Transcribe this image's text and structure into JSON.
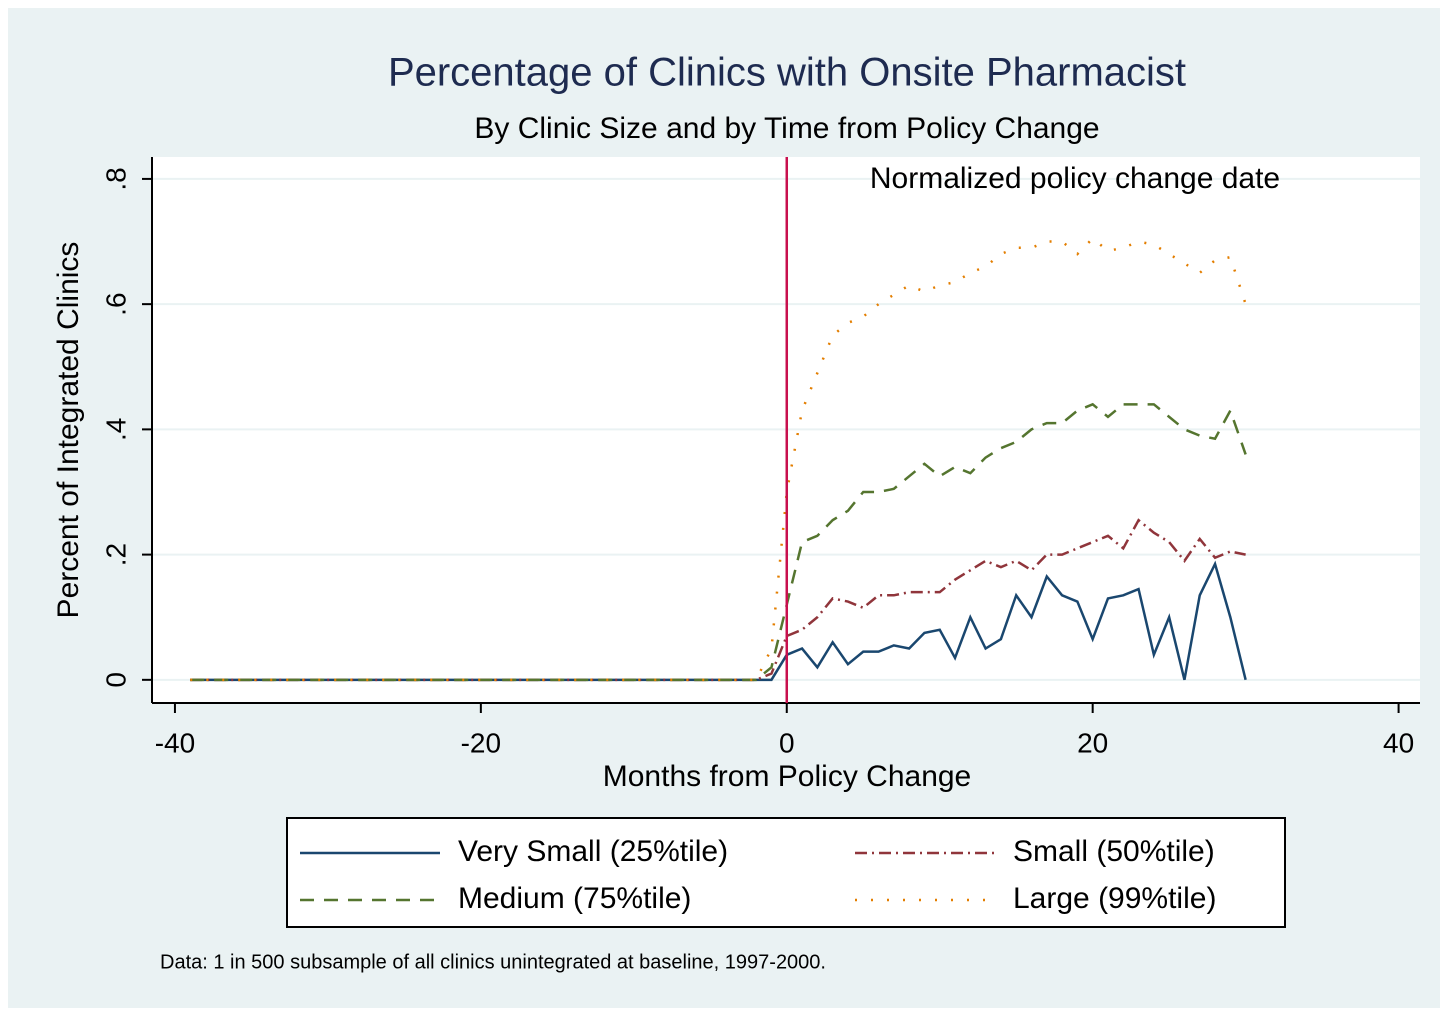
{
  "chart_data": {
    "type": "line",
    "title": "Percentage of Clinics with Onsite Pharmacist",
    "subtitle": "By Clinic Size and by Time from Policy Change",
    "xlabel": "Months from Policy Change",
    "ylabel": "Percent of Integrated Clinics",
    "note": "Data: 1 in 500 subsample of all clinics unintegrated at baseline, 1997-2000.",
    "reference_line": {
      "x": 0,
      "label": "Normalized policy change date",
      "color": "#c8104e"
    },
    "x": [
      -39,
      -38,
      -37,
      -36,
      -35,
      -34,
      -33,
      -32,
      -31,
      -30,
      -29,
      -28,
      -27,
      -26,
      -25,
      -24,
      -23,
      -22,
      -21,
      -20,
      -19,
      -18,
      -17,
      -16,
      -15,
      -14,
      -13,
      -12,
      -11,
      -10,
      -9,
      -8,
      -7,
      -6,
      -5,
      -4,
      -3,
      -2,
      -1,
      0,
      1,
      2,
      3,
      4,
      5,
      6,
      7,
      8,
      9,
      10,
      11,
      12,
      13,
      14,
      15,
      16,
      17,
      18,
      19,
      20,
      21,
      22,
      23,
      24,
      25,
      26,
      27,
      28,
      29,
      30
    ],
    "series": [
      {
        "name": "Very Small (25%tile)",
        "color": "#1a476f",
        "style": "solid",
        "values": [
          0,
          0,
          0,
          0,
          0,
          0,
          0,
          0,
          0,
          0,
          0,
          0,
          0,
          0,
          0,
          0,
          0,
          0,
          0,
          0,
          0,
          0,
          0,
          0,
          0,
          0,
          0,
          0,
          0,
          0,
          0,
          0,
          0,
          0,
          0,
          0,
          0,
          0,
          0,
          0.04,
          0.05,
          0.02,
          0.06,
          0.025,
          0.045,
          0.045,
          0.055,
          0.05,
          0.075,
          0.08,
          0.035,
          0.1,
          0.05,
          0.065,
          0.135,
          0.1,
          0.165,
          0.135,
          0.125,
          0.065,
          0.13,
          0.135,
          0.145,
          0.04,
          0.1,
          0,
          0.135,
          0.185,
          0.1,
          0
        ]
      },
      {
        "name": "Small (50%tile)",
        "color": "#90353b",
        "style": "dashdot",
        "values": [
          0,
          0,
          0,
          0,
          0,
          0,
          0,
          0,
          0,
          0,
          0,
          0,
          0,
          0,
          0,
          0,
          0,
          0,
          0,
          0,
          0,
          0,
          0,
          0,
          0,
          0,
          0,
          0,
          0,
          0,
          0,
          0,
          0,
          0,
          0,
          0,
          0,
          0,
          0.01,
          0.07,
          0.08,
          0.1,
          0.13,
          0.125,
          0.115,
          0.135,
          0.135,
          0.14,
          0.14,
          0.14,
          0.16,
          0.175,
          0.19,
          0.18,
          0.19,
          0.175,
          0.2,
          0.2,
          0.21,
          0.22,
          0.23,
          0.21,
          0.255,
          0.235,
          0.22,
          0.19,
          0.225,
          0.195,
          0.205,
          0.2
        ]
      },
      {
        "name": "Medium (75%tile)",
        "color": "#55752f",
        "style": "dash",
        "values": [
          0,
          0,
          0,
          0,
          0,
          0,
          0,
          0,
          0,
          0,
          0,
          0,
          0,
          0,
          0,
          0,
          0,
          0,
          0,
          0,
          0,
          0,
          0,
          0,
          0,
          0,
          0,
          0,
          0,
          0,
          0,
          0,
          0,
          0,
          0,
          0,
          0,
          0,
          0.02,
          0.12,
          0.22,
          0.23,
          0.255,
          0.27,
          0.3,
          0.3,
          0.305,
          0.325,
          0.345,
          0.325,
          0.34,
          0.33,
          0.355,
          0.37,
          0.38,
          0.4,
          0.41,
          0.41,
          0.43,
          0.44,
          0.42,
          0.44,
          0.44,
          0.44,
          0.42,
          0.4,
          0.39,
          0.385,
          0.43,
          0.36
        ]
      },
      {
        "name": "Large (99%tile)",
        "color": "#e37e00",
        "style": "dot",
        "values": [
          0,
          0,
          0,
          0,
          0,
          0,
          0,
          0,
          0,
          0,
          0,
          0,
          0,
          0,
          0,
          0,
          0,
          0,
          0,
          0,
          0,
          0,
          0,
          0,
          0,
          0,
          0,
          0,
          0,
          0,
          0,
          0,
          0,
          0,
          0,
          0,
          0,
          0,
          0.05,
          0.3,
          0.43,
          0.49,
          0.55,
          0.57,
          0.58,
          0.6,
          0.615,
          0.63,
          0.62,
          0.63,
          0.635,
          0.65,
          0.66,
          0.68,
          0.69,
          0.69,
          0.7,
          0.7,
          0.68,
          0.705,
          0.685,
          0.69,
          0.7,
          0.695,
          0.68,
          0.665,
          0.65,
          0.67,
          0.675,
          0.6
        ]
      }
    ],
    "xlim": [
      -41.5,
      41.4
    ],
    "xticks": [
      -40,
      -20,
      0,
      20,
      40
    ],
    "ylim": [
      -0.037,
      0.835
    ],
    "yticks": [
      {
        "value": 0,
        "label": "0"
      },
      {
        "value": 0.2,
        "label": ".2"
      },
      {
        "value": 0.4,
        "label": ".4"
      },
      {
        "value": 0.6,
        "label": ".6"
      },
      {
        "value": 0.8,
        "label": ".8"
      }
    ],
    "grid": true
  }
}
